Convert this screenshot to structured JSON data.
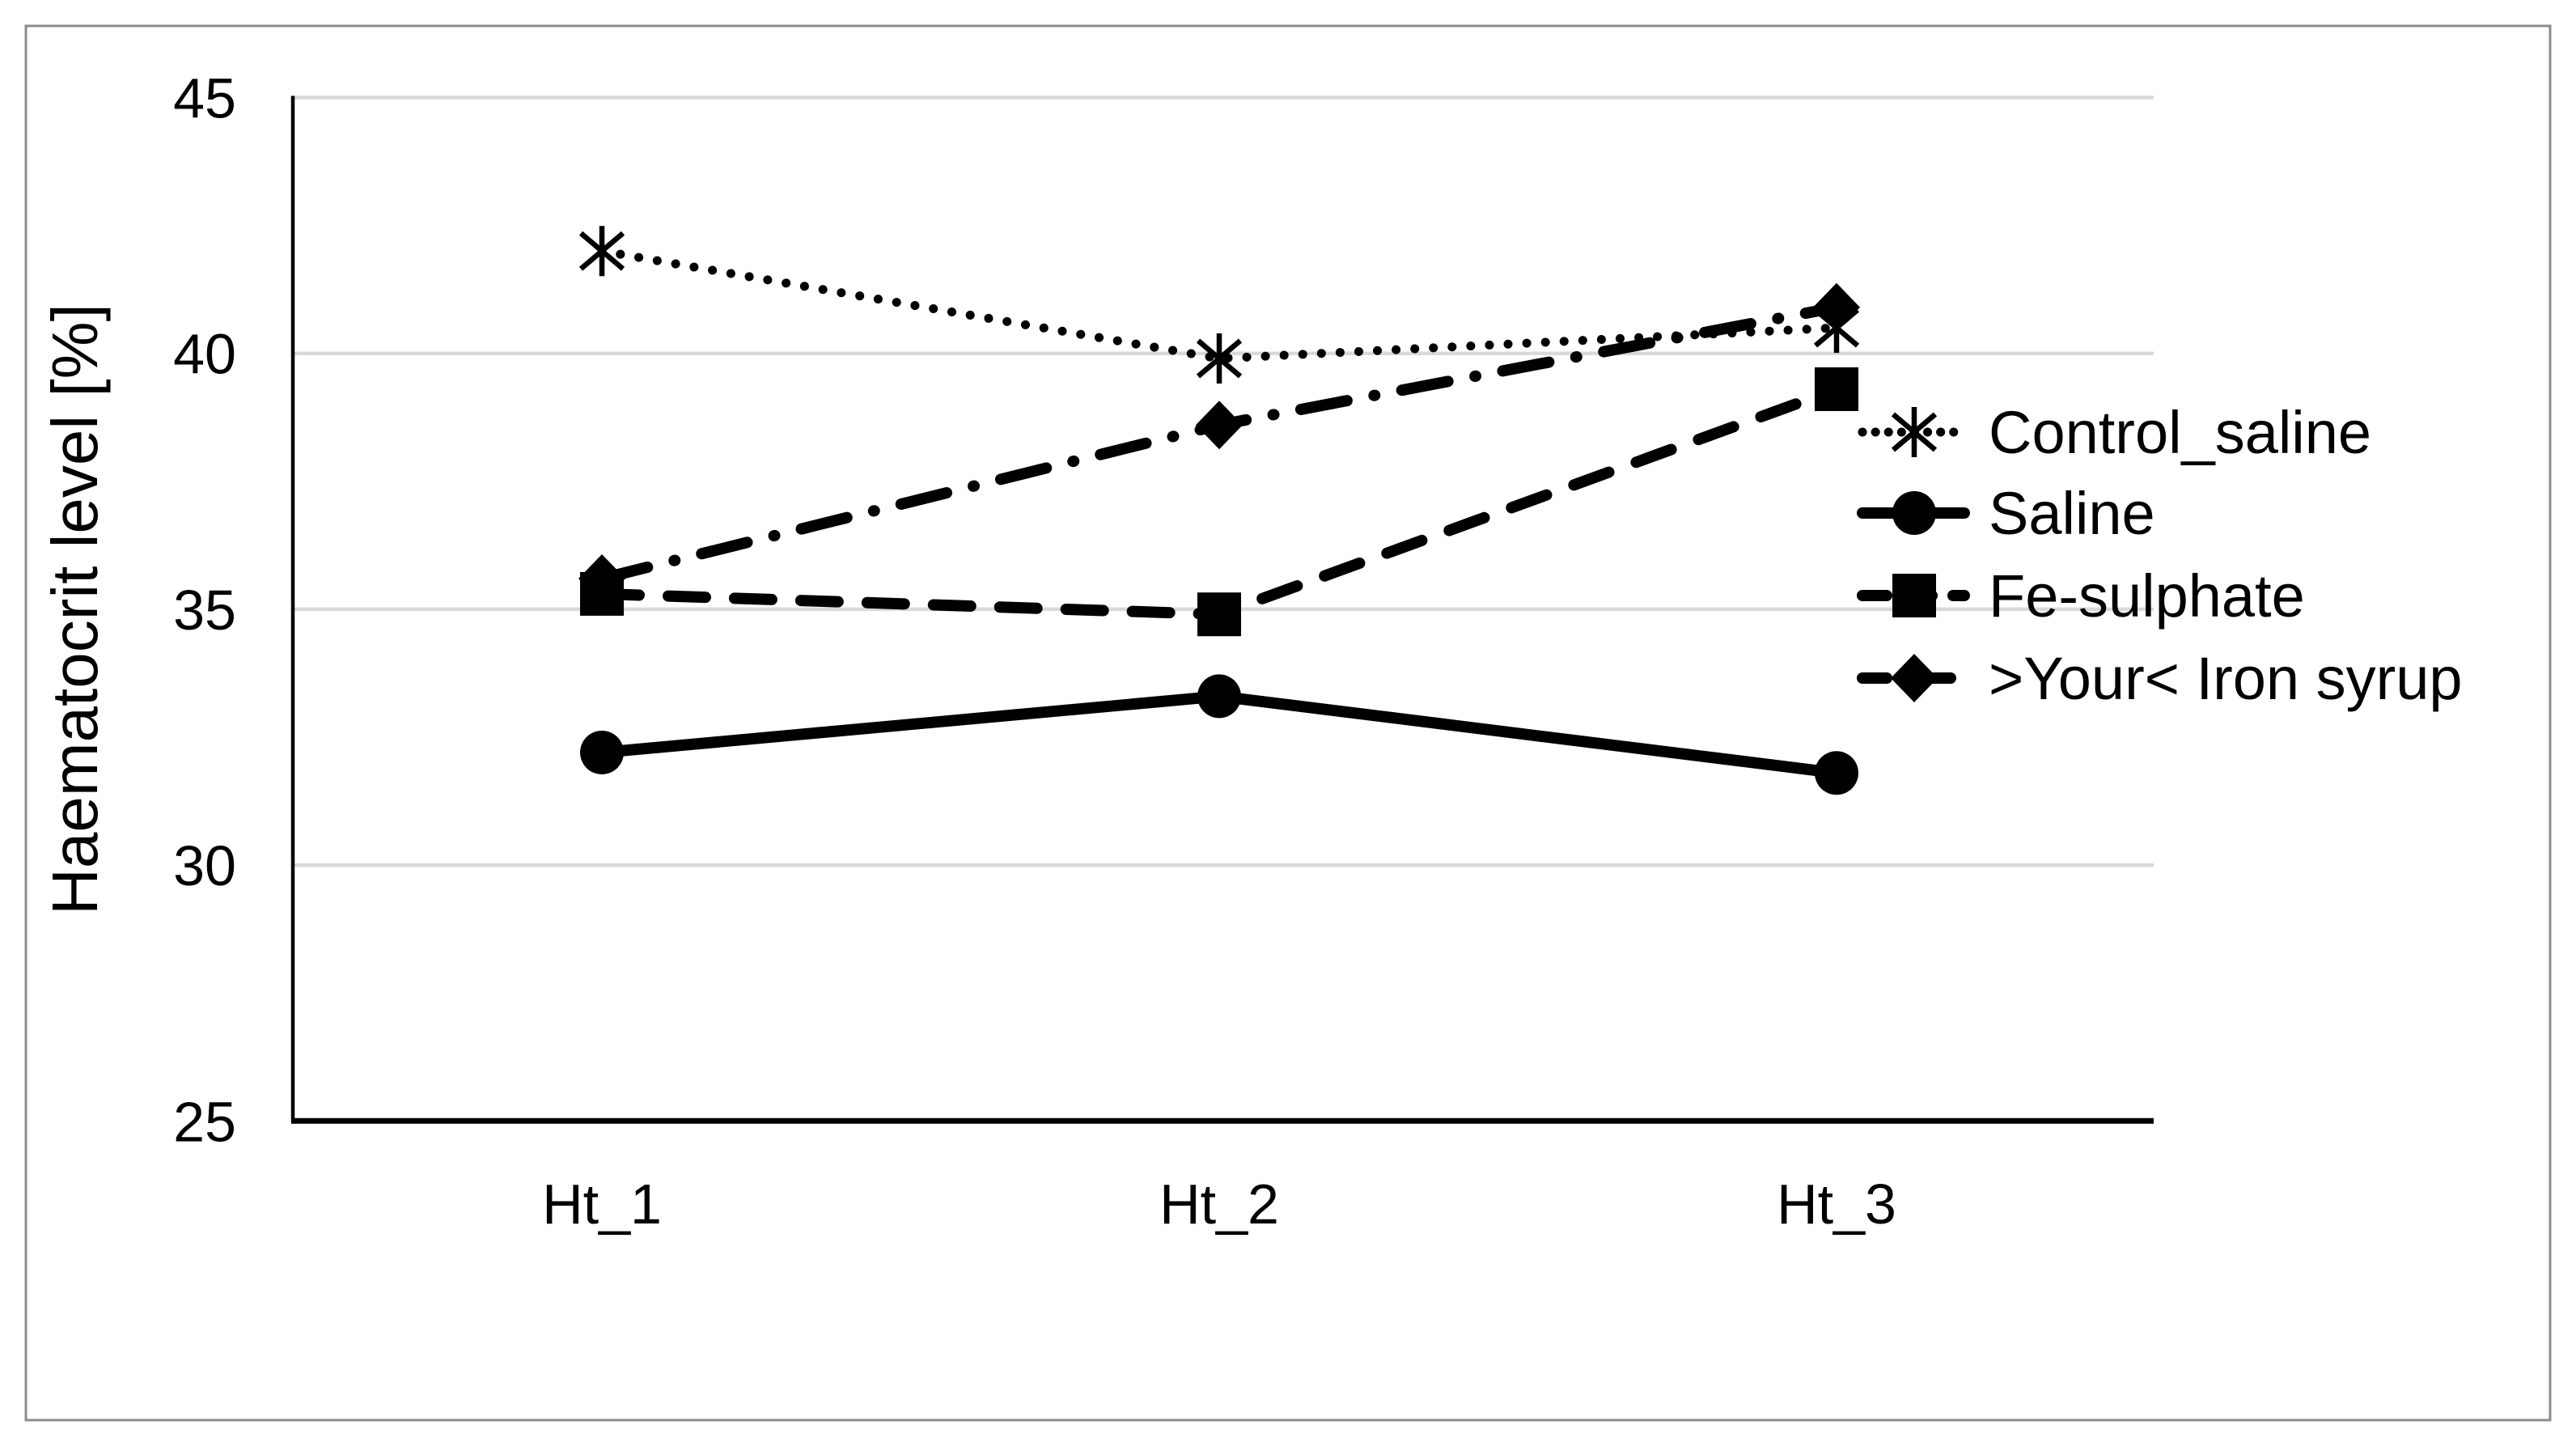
{
  "figure": {
    "background_color": "#ffffff",
    "border_color": "#8c8c8c",
    "series_color": "#000000",
    "gridline_color": "#d9d9d9",
    "axis_color": "#000000"
  },
  "chart_data": {
    "type": "line",
    "title": "",
    "xlabel": "",
    "ylabel": "Haematocrit level [%]",
    "categories": [
      "Ht_1",
      "Ht_2",
      "Ht_3"
    ],
    "ylim": [
      25,
      45
    ],
    "yticks": [
      25,
      30,
      35,
      40,
      45
    ],
    "grid": true,
    "legend_position": "right",
    "series": [
      {
        "name": "Control_saline",
        "values": [
          42.0,
          39.9,
          40.5
        ],
        "line_style": "dotted",
        "marker": "asterisk"
      },
      {
        "name": "Saline",
        "values": [
          32.2,
          33.3,
          31.8
        ],
        "line_style": "solid",
        "marker": "circle"
      },
      {
        "name": "Fe-sulphate",
        "values": [
          35.3,
          34.9,
          39.3
        ],
        "line_style": "dashed",
        "marker": "square"
      },
      {
        "name": ">Your< Iron syrup",
        "values": [
          35.6,
          38.6,
          40.9
        ],
        "line_style": "dash-dot",
        "marker": "diamond"
      }
    ]
  }
}
